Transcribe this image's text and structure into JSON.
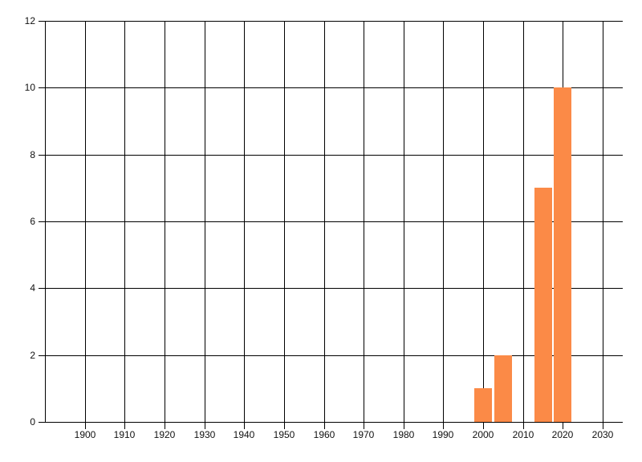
{
  "chart_data": {
    "type": "bar",
    "title": "",
    "xlabel": "",
    "ylabel": "",
    "x": [
      2000,
      2005,
      2015,
      2020
    ],
    "values": [
      1,
      2,
      7,
      10
    ],
    "bar_width_years": 4.4,
    "bar_color": "#FB8A47",
    "grid": true,
    "grid_color": "#000000",
    "text_color": "#111111",
    "background_color": "#FFFFFF",
    "legend_position": "none",
    "xlim": [
      1890,
      2035
    ],
    "ylim": [
      0,
      12
    ],
    "x_axis_position_year": 1890,
    "x_ticks": [
      1900,
      1910,
      1920,
      1930,
      1940,
      1950,
      1960,
      1970,
      1980,
      1990,
      2000,
      2010,
      2020,
      2030
    ],
    "y_ticks": [
      0,
      2,
      4,
      6,
      8,
      10,
      12
    ]
  }
}
